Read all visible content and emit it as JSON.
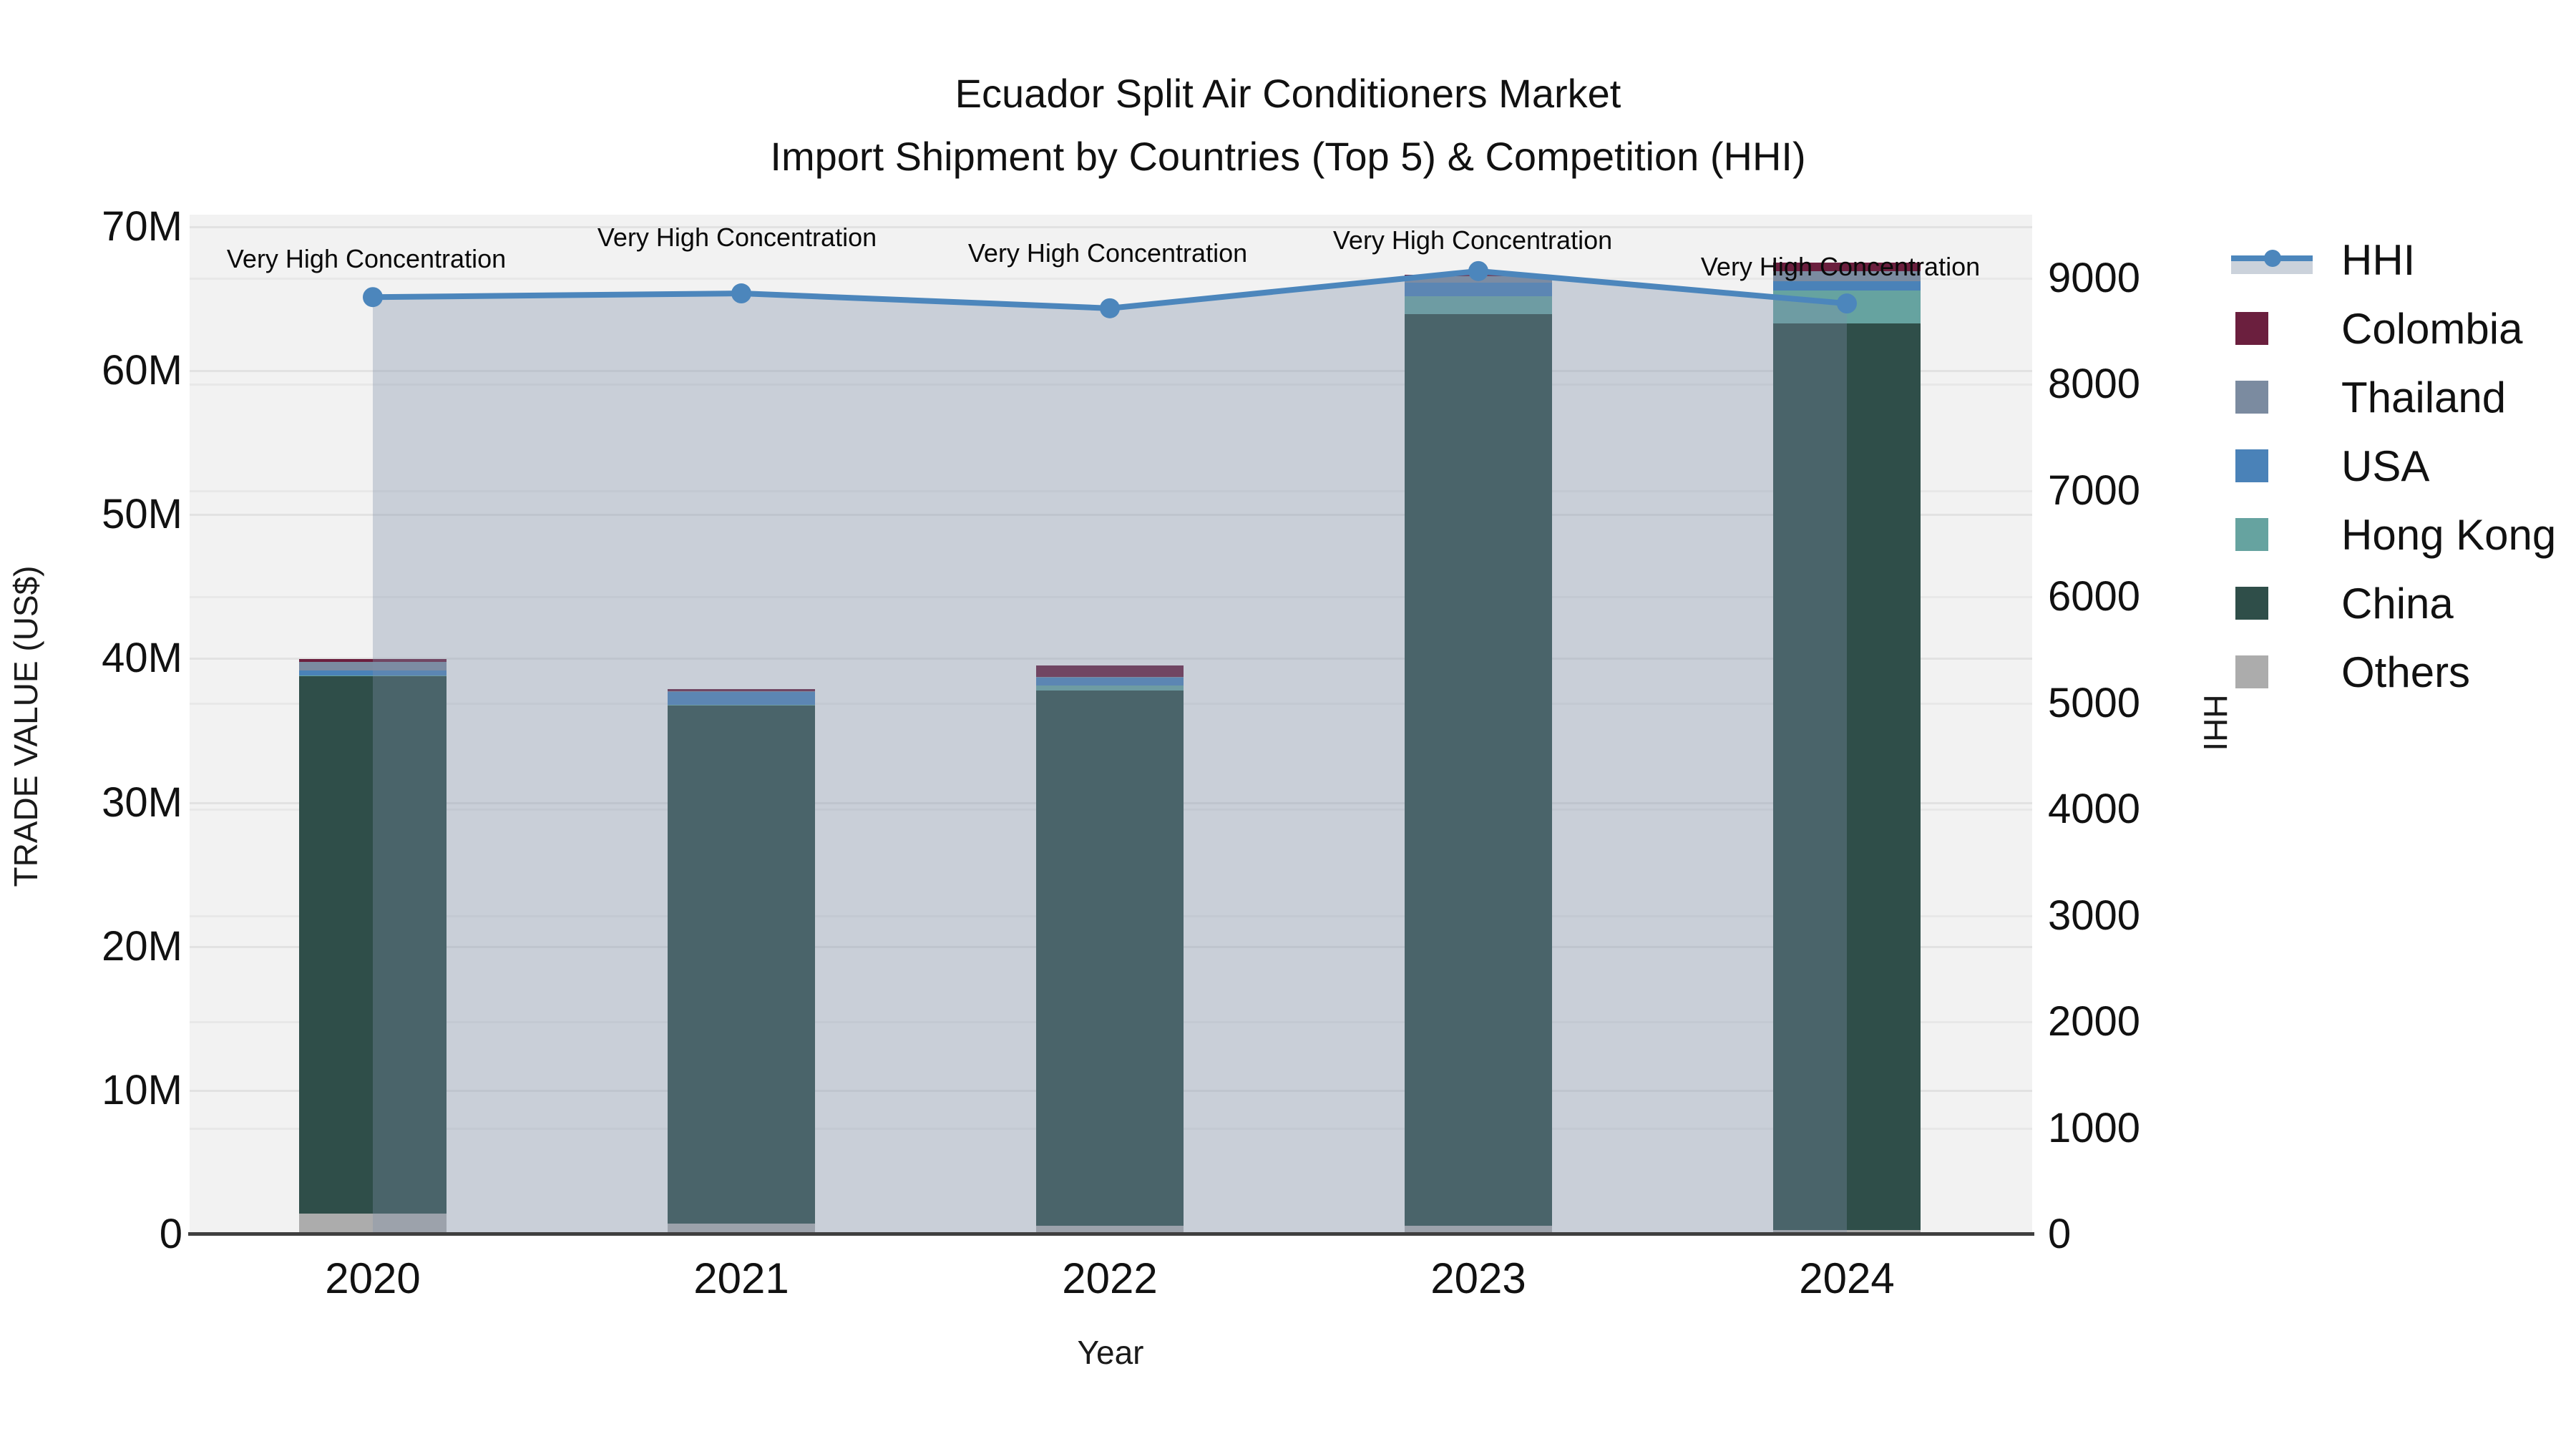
{
  "title": {
    "line1": "Ecuador Split Air Conditioners Market",
    "line2": "Import Shipment by Countries (Top 5) & Competition (HHI)"
  },
  "axes": {
    "left": {
      "title": "TRADE VALUE (US$)",
      "ticks": [
        "0",
        "10M",
        "20M",
        "30M",
        "40M",
        "50M",
        "60M",
        "70M"
      ]
    },
    "right": {
      "title": "HHI",
      "ticks": [
        "0",
        "1000",
        "2000",
        "3000",
        "4000",
        "5000",
        "6000",
        "7000",
        "8000",
        "9000"
      ]
    },
    "bottom": {
      "title": "Year",
      "ticks": [
        "2020",
        "2021",
        "2022",
        "2023",
        "2024"
      ]
    }
  },
  "legend": {
    "items": [
      "HHI",
      "Colombia",
      "Thailand",
      "USA",
      "Hong Kong",
      "China",
      "Others"
    ]
  },
  "annotations": [
    "Very High Concentration",
    "Very High Concentration",
    "Very High Concentration",
    "Very High Concentration",
    "Very High Concentration"
  ],
  "colors": {
    "Colombia": "#6B1F3E",
    "Thailand": "#7B8BA0",
    "USA": "#4A82B8",
    "Hong Kong": "#66A3A0",
    "China": "#2F4E49",
    "Others": "#ACACAC",
    "hhi_line": "#4C86BC",
    "hhi_area": "rgba(125,143,168,0.35)",
    "legend_band": "#CBD2DB",
    "plot_bg": "#F2F2F2"
  },
  "chart_data": {
    "type": "bar",
    "subtype": "stacked bars with secondary-axis line (HHI)",
    "categories": [
      "2020",
      "2021",
      "2022",
      "2023",
      "2024"
    ],
    "bar_value_unit": "million US$",
    "series": [
      {
        "name": "Colombia",
        "values": [
          0.2,
          0.15,
          0.75,
          0.1,
          0.6
        ]
      },
      {
        "name": "Thailand",
        "values": [
          0.55,
          0.05,
          0.05,
          0.45,
          0.7
        ]
      },
      {
        "name": "USA",
        "values": [
          0.35,
          0.9,
          0.55,
          0.9,
          0.6
        ]
      },
      {
        "name": "Hong Kong",
        "values": [
          0.05,
          0.05,
          0.35,
          1.25,
          2.3
        ]
      },
      {
        "name": "China",
        "values": [
          37.35,
          36.0,
          37.2,
          63.35,
          63.0
        ]
      },
      {
        "name": "Others",
        "values": [
          1.45,
          0.75,
          0.6,
          0.6,
          0.3
        ]
      }
    ],
    "totals": [
      39.95,
      37.9,
      39.5,
      66.65,
      67.5
    ],
    "line_series": {
      "name": "HHI",
      "axis": "right",
      "values": [
        8820,
        8855,
        8715,
        9065,
        8760
      ]
    },
    "title": "Ecuador Split Air Conditioners Market — Import Shipment by Countries (Top 5) & Competition (HHI)",
    "xlabel": "Year",
    "ylabel_left": "TRADE VALUE (US$)",
    "ylabel_right": "HHI",
    "ylim_left": [
      0,
      70000000
    ],
    "ylim_right": [
      0,
      9000
    ],
    "grid": true,
    "legend_position": "right",
    "annotation_per_point": "Very High Concentration"
  }
}
